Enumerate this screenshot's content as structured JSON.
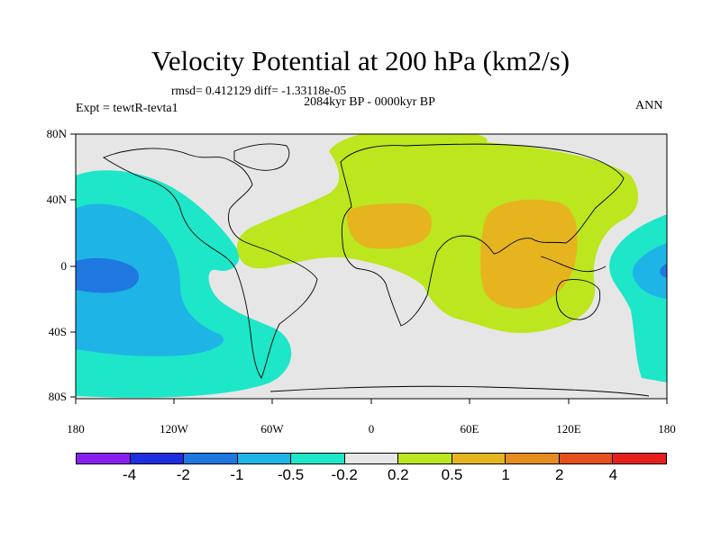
{
  "title": "Velocity Potential at 200 hPa (km2/s)",
  "rmsd_line": "rmsd= 0.412129  diff= -1.33118e-05",
  "period": "2084kyr BP - 0000kyr BP",
  "experiment": "Expt = tewtR-tevta1",
  "season": "ANN",
  "x_axis": {
    "ticks": [
      "180",
      "120W",
      "60W",
      "0",
      "60E",
      "120E",
      "180"
    ],
    "lon_values": [
      -180,
      -120,
      -60,
      0,
      60,
      120,
      180
    ]
  },
  "y_axis": {
    "ticks": [
      "80N",
      "40N",
      "0",
      "40S",
      "80S"
    ],
    "lat_values": [
      80,
      40,
      0,
      -40,
      -80
    ]
  },
  "colorbar": {
    "labels": [
      "-4",
      "-2",
      "-1",
      "-0.5",
      "-0.2",
      "0.2",
      "0.5",
      "1",
      "2",
      "4"
    ],
    "colors": [
      "#8a1ef0",
      "#1c2ee0",
      "#1e78e0",
      "#1eb4e6",
      "#1ee6c8",
      "#e6e6e6",
      "#bce61e",
      "#e6b41e",
      "#e68c1e",
      "#e6501e",
      "#e61e1e"
    ]
  },
  "chart_data": {
    "type": "contour_map",
    "variable": "Velocity Potential at 200 hPa",
    "units": "km2/s",
    "projection": "cylindrical equidistant",
    "lon_range": [
      -180,
      180
    ],
    "lat_range": [
      -90,
      90
    ],
    "levels": [
      -4,
      -2,
      -1,
      -0.5,
      -0.2,
      0.2,
      0.5,
      1,
      2,
      4
    ],
    "regions": [
      {
        "name": "negative core over tropical central Pacific",
        "lon": -160,
        "lat": -5,
        "range": "-2 to -1"
      },
      {
        "name": "negative field over eastern Pacific",
        "lon": -140,
        "lat": 0,
        "range": "-1 to -0.5"
      },
      {
        "name": "negative fringe over Pacific",
        "lon": -120,
        "lat": -20,
        "range": "-0.5 to -0.2"
      },
      {
        "name": "negative field over western Pacific edge",
        "lon": 170,
        "lat": 0,
        "range": "-1 to -0.5"
      },
      {
        "name": "positive broad area over Eurasia, Africa and Indian Ocean",
        "lon": 40,
        "lat": 20,
        "range": "0.2 to 0.5"
      },
      {
        "name": "positive maximum over North Africa",
        "lon": 10,
        "lat": 20,
        "range": "0.5 to 1"
      },
      {
        "name": "positive maximum over Indian Ocean / South Asia",
        "lon": 90,
        "lat": 5,
        "range": "0.5 to 1"
      }
    ]
  }
}
